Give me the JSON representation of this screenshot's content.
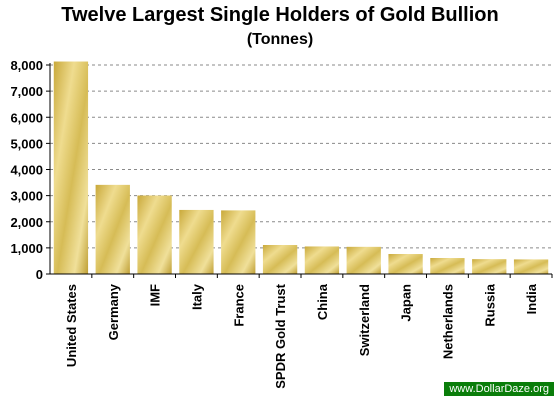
{
  "chart_data": {
    "type": "bar",
    "title": "Twelve Largest Single Holders of Gold Bullion",
    "subtitle": "(Tonnes)",
    "xlabel": "",
    "ylabel": "",
    "categories": [
      "United States",
      "Germany",
      "IMF",
      "Italy",
      "France",
      "SPDR Gold Trust",
      "China",
      "Switzerland",
      "Japan",
      "Netherlands",
      "Russia",
      "India"
    ],
    "values": [
      8133,
      3412,
      3005,
      2452,
      2435,
      1110,
      1054,
      1040,
      765,
      612,
      568,
      558
    ],
    "ylim": [
      0,
      8000
    ],
    "yticks": [
      "0",
      "1,000",
      "2,000",
      "3,000",
      "4,000",
      "5,000",
      "6,000",
      "7,000",
      "8,000"
    ],
    "grid": true,
    "bar_color": "#d4b64a"
  },
  "watermark": "www.DollarDaze.org"
}
